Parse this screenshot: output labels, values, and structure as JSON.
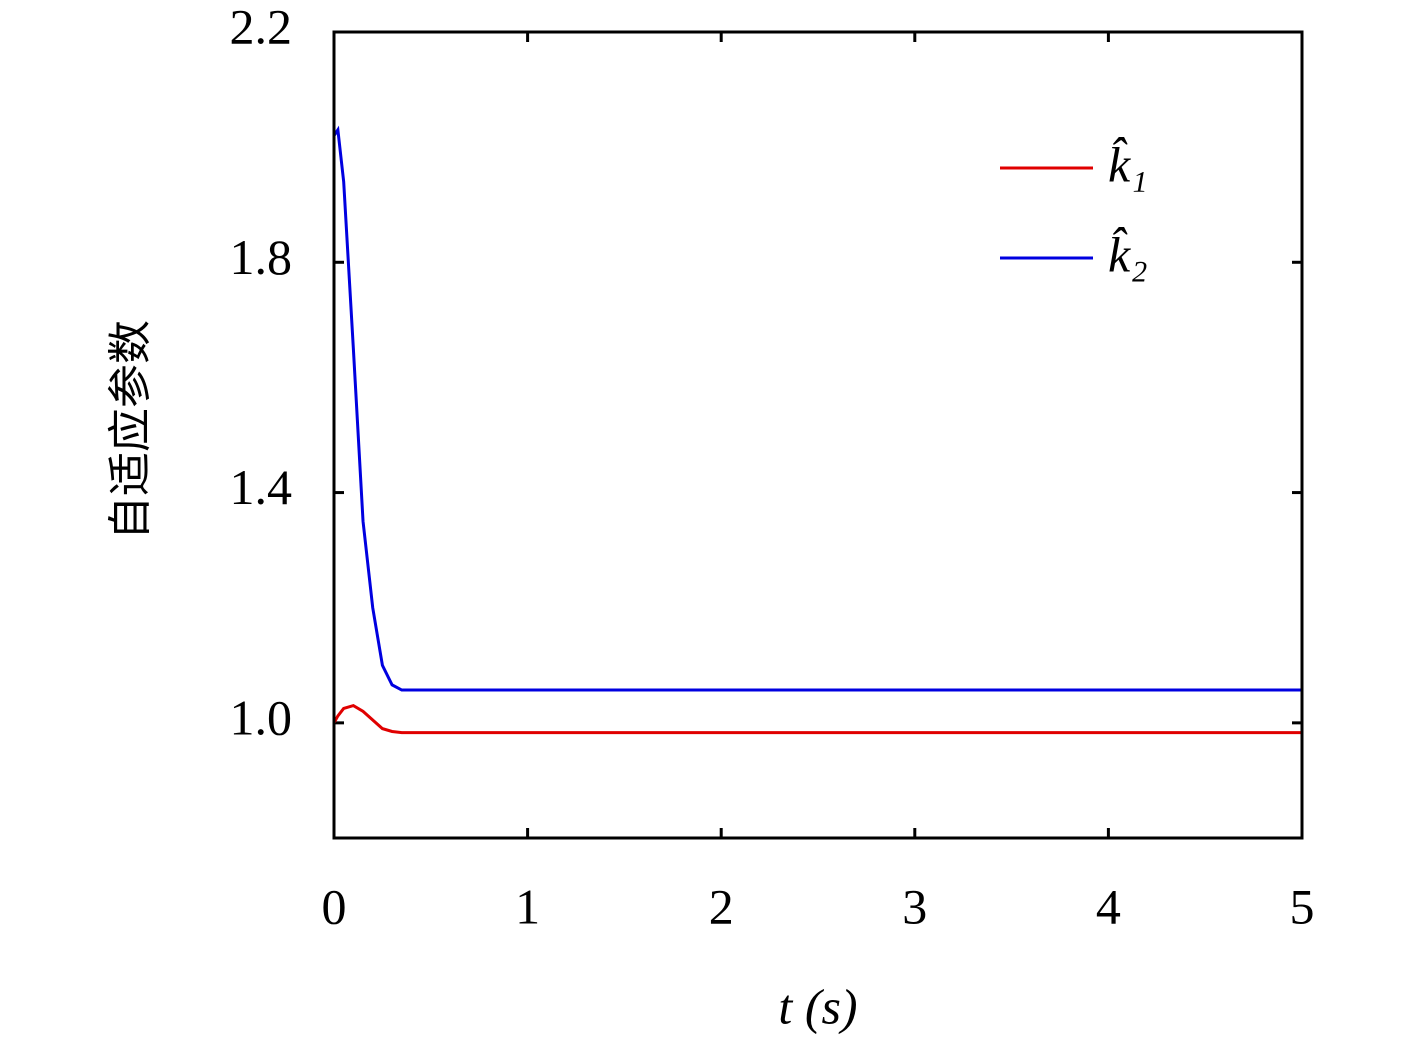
{
  "chart_data": {
    "type": "line",
    "x_label": "t (s)",
    "y_label": "自适应参数",
    "x": [
      0,
      0.02,
      0.05,
      0.1,
      0.15,
      0.2,
      0.25,
      0.3,
      0.35,
      0.4,
      1,
      2,
      3,
      4,
      5
    ],
    "series": [
      {
        "name": "k̂₁",
        "color": "#e00000",
        "values": [
          1.0,
          1.012,
          1.025,
          1.03,
          1.02,
          1.005,
          0.99,
          0.985,
          0.983,
          0.983,
          0.983,
          0.983,
          0.983,
          0.983,
          0.983
        ]
      },
      {
        "name": "k̂₂",
        "color": "#0000e0",
        "values": [
          2.02,
          2.03,
          1.94,
          1.65,
          1.35,
          1.2,
          1.1,
          1.066,
          1.057,
          1.057,
          1.057,
          1.057,
          1.057,
          1.057,
          1.057
        ]
      }
    ],
    "xlim": [
      0,
      5
    ],
    "xticks": [
      0,
      1,
      2,
      3,
      4,
      5
    ],
    "ylim": [
      0.8,
      2.2
    ],
    "yticks": [
      {
        "value": 1,
        "label": "1.0"
      },
      1.4,
      1.8,
      2.2
    ],
    "legend": "upper right",
    "grid": false
  }
}
